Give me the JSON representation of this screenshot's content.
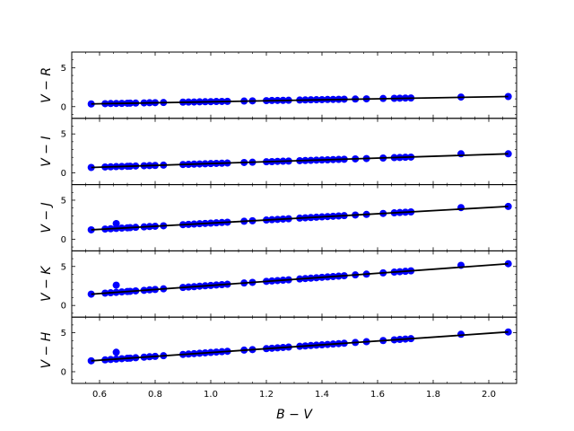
{
  "chart_data": {
    "type": "scatter",
    "shared_x": {
      "label": "B − V",
      "range": [
        0.5,
        2.1
      ],
      "ticks": [
        0.6,
        0.8,
        1.0,
        1.2,
        1.4,
        1.6,
        1.8,
        2.0
      ],
      "tick_labels": [
        "0.6",
        "0.8",
        "1.0",
        "1.2",
        "1.4",
        "1.6",
        "1.8",
        "2.0"
      ]
    },
    "point_color": "#0000ff",
    "line_color": "#000000",
    "x": [
      0.57,
      0.62,
      0.64,
      0.66,
      0.68,
      0.7,
      0.71,
      0.73,
      0.76,
      0.78,
      0.8,
      0.83,
      0.9,
      0.92,
      0.94,
      0.96,
      0.98,
      1.0,
      1.02,
      1.04,
      1.06,
      1.12,
      1.15,
      1.2,
      1.22,
      1.24,
      1.26,
      1.28,
      1.32,
      1.34,
      1.36,
      1.38,
      1.4,
      1.42,
      1.44,
      1.46,
      1.48,
      1.52,
      1.56,
      1.62,
      1.66,
      1.68,
      1.7,
      1.72,
      1.9,
      2.07
    ],
    "panels": [
      {
        "ylabel": "V − R",
        "ylim": [
          -1.5,
          7
        ],
        "yticks": [
          0,
          5
        ],
        "ytick_labels": [
          "0",
          "5"
        ],
        "fit": {
          "x": [
            0.57,
            2.07
          ],
          "y": [
            0.35,
            1.3
          ]
        },
        "outliers": [],
        "y": [
          0.35,
          0.38,
          0.4,
          0.41,
          0.42,
          0.44,
          0.45,
          0.46,
          0.48,
          0.5,
          0.51,
          0.53,
          0.58,
          0.59,
          0.6,
          0.62,
          0.63,
          0.64,
          0.66,
          0.67,
          0.68,
          0.72,
          0.74,
          0.77,
          0.79,
          0.8,
          0.81,
          0.82,
          0.85,
          0.86,
          0.88,
          0.89,
          0.9,
          0.92,
          0.93,
          0.94,
          0.96,
          0.98,
          1.0,
          1.05,
          1.07,
          1.09,
          1.1,
          1.11,
          1.23,
          1.3
        ]
      },
      {
        "ylabel": "V − I",
        "ylim": [
          -1.5,
          7
        ],
        "yticks": [
          0,
          5
        ],
        "ytick_labels": [
          "0",
          "5"
        ],
        "fit": {
          "x": [
            0.57,
            2.07
          ],
          "y": [
            0.7,
            2.45
          ]
        },
        "outliers": [],
        "y": [
          0.7,
          0.76,
          0.78,
          0.81,
          0.83,
          0.85,
          0.86,
          0.89,
          0.92,
          0.94,
          0.96,
          1.0,
          1.08,
          1.1,
          1.13,
          1.15,
          1.17,
          1.2,
          1.22,
          1.24,
          1.27,
          1.34,
          1.37,
          1.43,
          1.45,
          1.48,
          1.5,
          1.52,
          1.57,
          1.59,
          1.61,
          1.64,
          1.66,
          1.68,
          1.71,
          1.73,
          1.75,
          1.8,
          1.84,
          1.91,
          1.96,
          1.98,
          2.01,
          2.03,
          2.45,
          2.45
        ]
      },
      {
        "ylabel": "V − J",
        "ylim": [
          -1.5,
          7
        ],
        "yticks": [
          0,
          5
        ],
        "ytick_labels": [
          "0",
          "5"
        ],
        "fit": {
          "x": [
            0.57,
            2.07
          ],
          "y": [
            1.2,
            4.2
          ]
        },
        "outliers": [
          [
            0.66,
            2.0
          ]
        ],
        "y": [
          1.2,
          1.3,
          1.34,
          1.38,
          1.42,
          1.46,
          1.48,
          1.52,
          1.58,
          1.62,
          1.66,
          1.72,
          1.86,
          1.9,
          1.94,
          1.98,
          2.02,
          2.06,
          2.1,
          2.14,
          2.18,
          2.3,
          2.36,
          2.46,
          2.5,
          2.54,
          2.58,
          2.62,
          2.7,
          2.74,
          2.78,
          2.82,
          2.86,
          2.9,
          2.94,
          2.98,
          3.02,
          3.1,
          3.18,
          3.3,
          3.38,
          3.42,
          3.46,
          3.5,
          4.05,
          4.2
        ]
      },
      {
        "ylabel": "V − K",
        "ylim": [
          -1.5,
          7
        ],
        "yticks": [
          0,
          5
        ],
        "ytick_labels": [
          "0",
          "5"
        ],
        "fit": {
          "x": [
            0.57,
            2.07
          ],
          "y": [
            1.45,
            5.35
          ]
        },
        "outliers": [
          [
            0.66,
            2.6
          ]
        ],
        "y": [
          1.45,
          1.58,
          1.63,
          1.68,
          1.74,
          1.79,
          1.81,
          1.87,
          1.94,
          2.0,
          2.05,
          2.13,
          2.31,
          2.36,
          2.41,
          2.47,
          2.52,
          2.57,
          2.62,
          2.67,
          2.72,
          2.88,
          2.96,
          3.09,
          3.14,
          3.19,
          3.24,
          3.29,
          3.4,
          3.45,
          3.5,
          3.55,
          3.61,
          3.66,
          3.71,
          3.76,
          3.81,
          3.92,
          4.02,
          4.18,
          4.28,
          4.33,
          4.38,
          4.44,
          5.15,
          5.35
        ]
      },
      {
        "ylabel": "V − H",
        "ylim": [
          -1.5,
          7
        ],
        "yticks": [
          0,
          5
        ],
        "ytick_labels": [
          "0",
          "5"
        ],
        "fit": {
          "x": [
            0.57,
            2.07
          ],
          "y": [
            1.4,
            5.1
          ]
        },
        "outliers": [
          [
            0.66,
            2.5
          ]
        ],
        "y": [
          1.4,
          1.52,
          1.57,
          1.62,
          1.67,
          1.72,
          1.74,
          1.79,
          1.87,
          1.92,
          1.97,
          2.05,
          2.22,
          2.27,
          2.32,
          2.37,
          2.42,
          2.47,
          2.52,
          2.57,
          2.62,
          2.77,
          2.84,
          2.96,
          3.01,
          3.06,
          3.11,
          3.16,
          3.26,
          3.31,
          3.36,
          3.41,
          3.45,
          3.5,
          3.55,
          3.6,
          3.65,
          3.75,
          3.85,
          4.0,
          4.09,
          4.14,
          4.19,
          4.24,
          4.8,
          5.1
        ]
      }
    ]
  }
}
